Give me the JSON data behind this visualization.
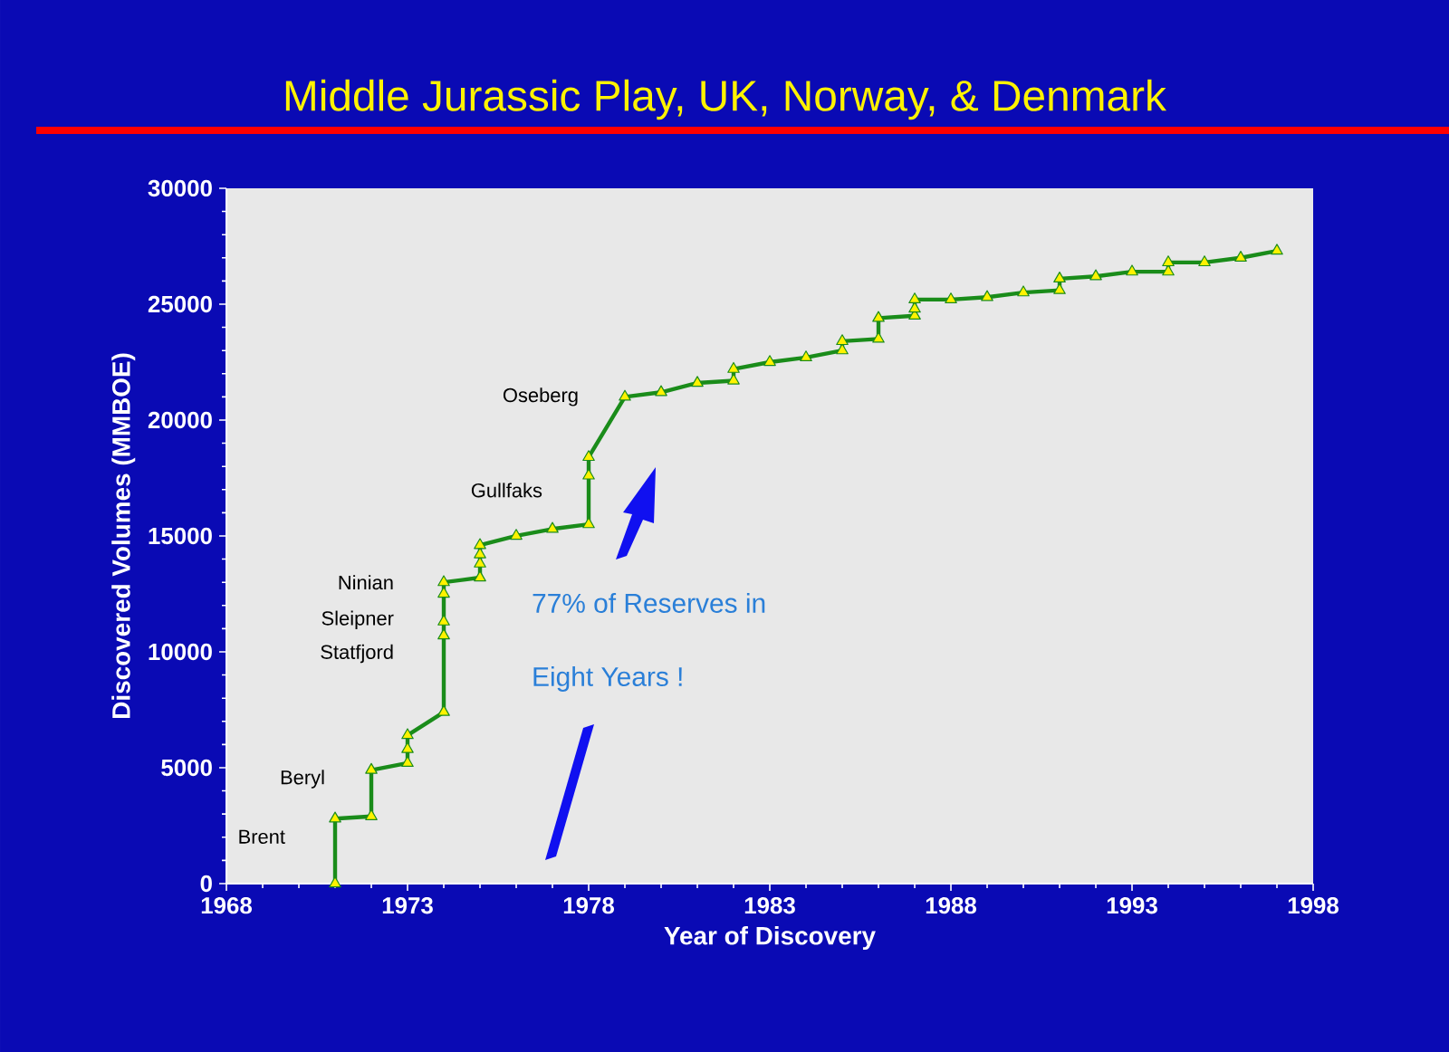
{
  "chart_data": {
    "type": "line",
    "title": "Middle Jurassic Play, UK, Norway,  & Denmark",
    "xlabel": "Year of Discovery",
    "ylabel": "Discovered Volumes (MMBOE)",
    "xlim": [
      1968,
      1998
    ],
    "xticks": [
      1968,
      1973,
      1978,
      1983,
      1988,
      1993,
      1998
    ],
    "ylim": [
      0,
      30000
    ],
    "yticks": [
      0,
      5000,
      10000,
      15000,
      20000,
      25000,
      30000
    ],
    "marker": "triangle",
    "line_style": "solid",
    "grid": false,
    "series": [
      {
        "color": "#1a8c1a",
        "x": [
          1971,
          1971,
          1972,
          1972,
          1973,
          1973,
          1973,
          1974,
          1974,
          1974,
          1974,
          1974,
          1975,
          1975,
          1975,
          1975,
          1976,
          1977,
          1978,
          1978,
          1978,
          1979,
          1980,
          1981,
          1982,
          1982,
          1983,
          1984,
          1985,
          1985,
          1986,
          1986,
          1987,
          1987,
          1987,
          1988,
          1989,
          1990,
          1991,
          1991,
          1992,
          1993,
          1994,
          1994,
          1995,
          1996,
          1997
        ],
        "values": [
          0,
          2800,
          2900,
          4900,
          5200,
          5800,
          6400,
          7400,
          10700,
          11300,
          12500,
          13000,
          13200,
          13800,
          14200,
          14600,
          15000,
          15300,
          15500,
          17600,
          18400,
          21000,
          21200,
          21600,
          21700,
          22200,
          22500,
          22700,
          23000,
          23400,
          23500,
          24400,
          24500,
          24800,
          25200,
          25200,
          25300,
          25500,
          25600,
          26100,
          26200,
          26400,
          26400,
          26800,
          26800,
          27000,
          27300
        ]
      }
    ],
    "annotations": [
      {
        "text": "Brent",
        "x": 1971,
        "y": 2800
      },
      {
        "text": "Beryl",
        "x": 1972,
        "y": 4900
      },
      {
        "text": "Statfjord",
        "x": 1974,
        "y": 10700
      },
      {
        "text": "Sleipner",
        "x": 1974,
        "y": 12000
      },
      {
        "text": "Ninian",
        "x": 1974,
        "y": 13000
      },
      {
        "text": "Gullfaks",
        "x": 1978,
        "y": 17600
      },
      {
        "text": "Oseberg",
        "x": 1979,
        "y": 21000
      },
      "77% of Reserves in",
      "Eight Years !"
    ]
  }
}
